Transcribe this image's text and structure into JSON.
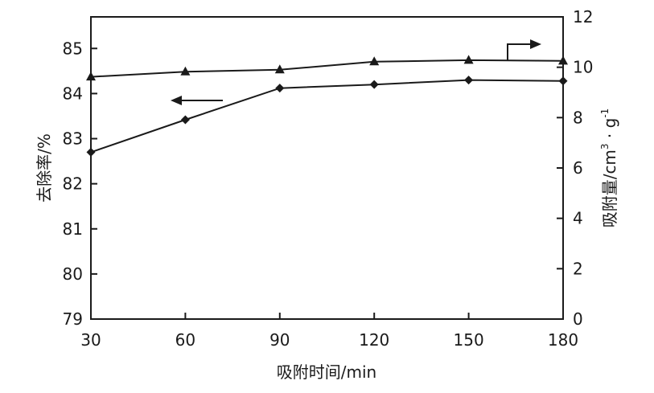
{
  "chart_data": {
    "type": "line",
    "x": [
      30,
      60,
      90,
      120,
      150,
      180
    ],
    "xlim": [
      30,
      180
    ],
    "xticks": [
      "30",
      "60",
      "90",
      "120",
      "150",
      "180"
    ],
    "xlabel": "吸附时间/min",
    "left_axis": {
      "label": "去除率/%",
      "ylim": [
        79,
        85.7
      ],
      "ticks": [
        "79",
        "80",
        "81",
        "82",
        "83",
        "84",
        "85"
      ]
    },
    "right_axis": {
      "label_main": "吸附量/cm",
      "label_sup1": "3",
      "label_mid": " · g",
      "label_sup2": "-1",
      "ylim": [
        0,
        12
      ],
      "ticks": [
        "0",
        "2",
        "4",
        "6",
        "8",
        "10",
        "12"
      ]
    },
    "series": [
      {
        "axis": "left",
        "marker": "diamond",
        "values": [
          82.7,
          83.42,
          84.12,
          84.2,
          84.3,
          84.28
        ]
      },
      {
        "axis": "right",
        "marker": "triangle",
        "values": [
          9.62,
          9.82,
          9.9,
          10.22,
          10.28,
          10.25
        ]
      }
    ],
    "grid": false,
    "line_color": "#1a1a1a"
  }
}
